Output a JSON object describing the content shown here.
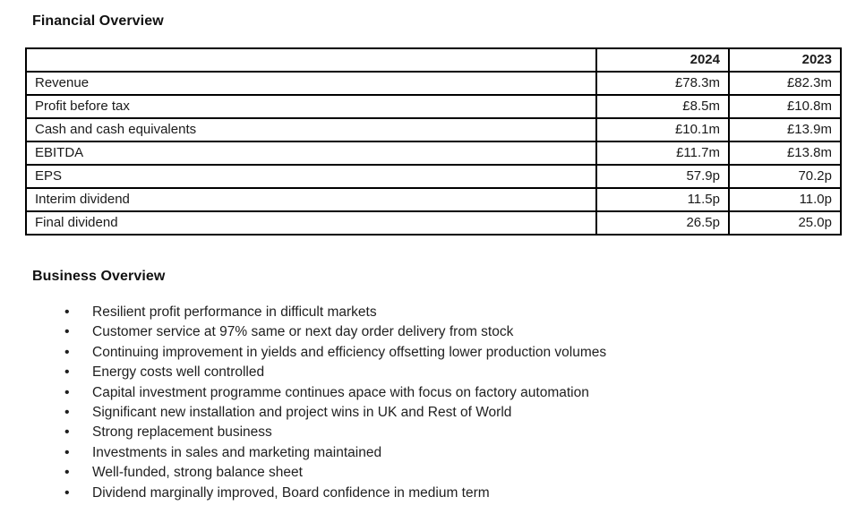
{
  "sections": {
    "financial": {
      "title": "Financial Overview"
    },
    "business": {
      "title": "Business Overview",
      "bullets": [
        "Resilient profit performance in difficult markets",
        "Customer service at 97% same or next day order delivery from stock",
        "Continuing improvement in yields and efficiency offsetting lower production volumes",
        "Energy costs well controlled",
        "Capital investment programme continues apace with focus on factory automation",
        "Significant new installation and project wins in UK and Rest of World",
        "Strong replacement business",
        "Investments in sales and marketing maintained",
        "Well-funded, strong balance sheet",
        "Dividend marginally improved, Board confidence in medium term"
      ]
    }
  },
  "table": {
    "headers": [
      "",
      "2024",
      "2023"
    ],
    "rows": [
      {
        "label": "Revenue",
        "y2024": "£78.3m",
        "y2023": "£82.3m"
      },
      {
        "label": "Profit before tax",
        "y2024": "£8.5m",
        "y2023": "£10.8m"
      },
      {
        "label": "Cash and cash equivalents",
        "y2024": "£10.1m",
        "y2023": "£13.9m"
      },
      {
        "label": "EBITDA",
        "y2024": "£11.7m",
        "y2023": "£13.8m"
      },
      {
        "label": "EPS",
        "y2024": "57.9p",
        "y2023": "70.2p"
      },
      {
        "label": "Interim dividend",
        "y2024": "11.5p",
        "y2023": "11.0p"
      },
      {
        "label": "Final dividend",
        "y2024": "26.5p",
        "y2023": "25.0p"
      }
    ]
  },
  "chart_data": {
    "type": "table",
    "title": "Financial Overview",
    "categories": [
      "Revenue",
      "Profit before tax",
      "Cash and cash equivalents",
      "EBITDA",
      "EPS",
      "Interim dividend",
      "Final dividend"
    ],
    "series": [
      {
        "name": "2024",
        "values": [
          "£78.3m",
          "£8.5m",
          "£10.1m",
          "£11.7m",
          "57.9p",
          "11.5p",
          "26.5p"
        ]
      },
      {
        "name": "2023",
        "values": [
          "£82.3m",
          "£10.8m",
          "£13.9m",
          "£13.8m",
          "70.2p",
          "11.0p",
          "25.0p"
        ]
      }
    ]
  }
}
